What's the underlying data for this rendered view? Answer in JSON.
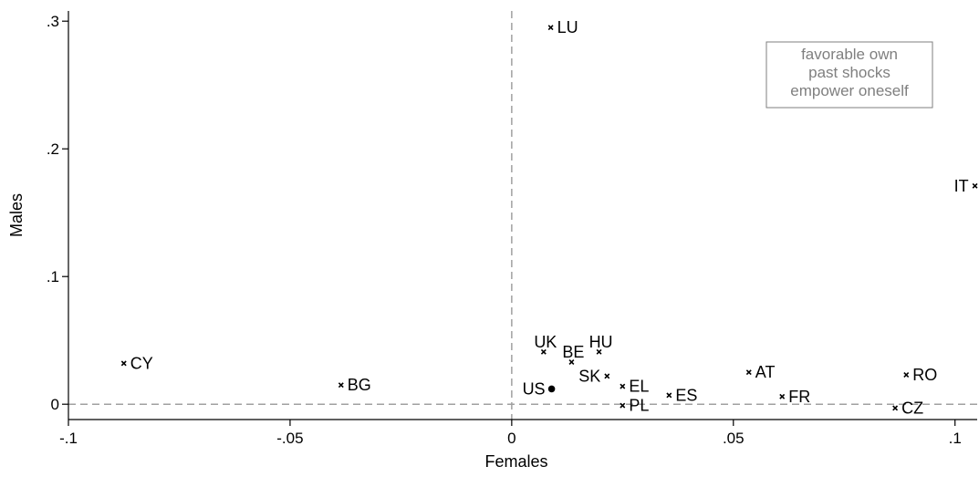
{
  "chart_data": {
    "type": "scatter",
    "xlabel": "Females",
    "ylabel": "Males",
    "xlim": [
      -0.1,
      0.105
    ],
    "ylim": [
      -0.012,
      0.308
    ],
    "xticks": [
      {
        "v": -0.1,
        "label": "-.1"
      },
      {
        "v": -0.05,
        "label": "-.05"
      },
      {
        "v": 0,
        "label": "0"
      },
      {
        "v": 0.05,
        "label": ".05"
      },
      {
        "v": 0.1,
        "label": ".1"
      }
    ],
    "yticks": [
      {
        "v": 0,
        "label": "0"
      },
      {
        "v": 0.1,
        "label": ".1"
      },
      {
        "v": 0.2,
        "label": ".2"
      },
      {
        "v": 0.3,
        "label": ".3"
      }
    ],
    "reference_lines": {
      "x": 0,
      "y": 0
    },
    "annotation": [
      "favorable own",
      "past shocks",
      "empower oneself"
    ],
    "points": [
      {
        "label": "LU",
        "x": 0.0088,
        "y": 0.295,
        "marker": "x",
        "label_pos": "right"
      },
      {
        "label": "IT",
        "x": 0.1045,
        "y": 0.171,
        "marker": "x",
        "label_pos": "left"
      },
      {
        "label": "CY",
        "x": -0.0875,
        "y": 0.032,
        "marker": "x",
        "label_pos": "right"
      },
      {
        "label": "BG",
        "x": -0.0385,
        "y": 0.015,
        "marker": "x",
        "label_pos": "right"
      },
      {
        "label": "UK",
        "x": 0.0072,
        "y": 0.041,
        "marker": "x",
        "label_pos": "above"
      },
      {
        "label": "BE",
        "x": 0.0135,
        "y": 0.033,
        "marker": "x",
        "label_pos": "above"
      },
      {
        "label": "HU",
        "x": 0.0197,
        "y": 0.041,
        "marker": "x",
        "label_pos": "above"
      },
      {
        "label": "SK",
        "x": 0.0215,
        "y": 0.022,
        "marker": "x",
        "label_pos": "left"
      },
      {
        "label": "US",
        "x": 0.009,
        "y": 0.012,
        "marker": "dot",
        "label_pos": "left"
      },
      {
        "label": "EL",
        "x": 0.025,
        "y": 0.014,
        "marker": "x",
        "label_pos": "right"
      },
      {
        "label": "PL",
        "x": 0.025,
        "y": -0.001,
        "marker": "x",
        "label_pos": "right"
      },
      {
        "label": "ES",
        "x": 0.0355,
        "y": 0.007,
        "marker": "x",
        "label_pos": "right"
      },
      {
        "label": "AT",
        "x": 0.0535,
        "y": 0.025,
        "marker": "x",
        "label_pos": "right"
      },
      {
        "label": "FR",
        "x": 0.061,
        "y": 0.006,
        "marker": "x",
        "label_pos": "right"
      },
      {
        "label": "RO",
        "x": 0.089,
        "y": 0.023,
        "marker": "x",
        "label_pos": "right"
      },
      {
        "label": "CZ",
        "x": 0.0865,
        "y": -0.003,
        "marker": "x",
        "label_pos": "right"
      }
    ]
  }
}
